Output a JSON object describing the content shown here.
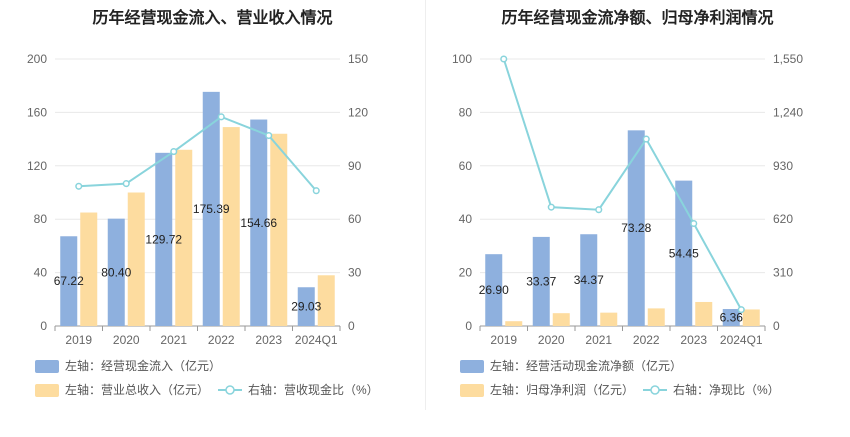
{
  "chart_data": [
    {
      "type": "bar",
      "title": "历年经营现金流入、营业收入情况",
      "categories": [
        "2019",
        "2020",
        "2021",
        "2022",
        "2023",
        "2024Q1"
      ],
      "left_axis": {
        "ylim": [
          0,
          200
        ],
        "ticks": [
          "0",
          "40",
          "80",
          "120",
          "160",
          "200"
        ]
      },
      "right_axis": {
        "ylim": [
          0,
          150
        ],
        "ticks": [
          "0",
          "30",
          "60",
          "90",
          "120",
          "150"
        ]
      },
      "series": [
        {
          "name": "左轴：经营现金流入（亿元）",
          "kind": "bar",
          "axis": "left",
          "color": "#8eb0de",
          "values": [
            67.22,
            80.4,
            129.72,
            175.39,
            154.66,
            29.03
          ],
          "labels": [
            "67.22",
            "80.40",
            "129.72",
            "175.39",
            "154.66",
            "29.03"
          ]
        },
        {
          "name": "左轴：营业总收入（亿元）",
          "kind": "bar",
          "axis": "left",
          "color": "#fddc9f",
          "values": [
            85,
            100,
            132,
            149,
            144,
            38
          ]
        },
        {
          "name": "右轴：营收现金比（%）",
          "kind": "line",
          "axis": "right",
          "color": "#89d4dc",
          "values": [
            78.5,
            80.0,
            98.0,
            117.5,
            107.0,
            76.0
          ]
        }
      ]
    },
    {
      "type": "bar",
      "title": "历年经营现金流净额、归母净利润情况",
      "categories": [
        "2019",
        "2020",
        "2021",
        "2022",
        "2023",
        "2024Q1"
      ],
      "left_axis": {
        "ylim": [
          0,
          100
        ],
        "ticks": [
          "0",
          "20",
          "40",
          "60",
          "80",
          "100"
        ]
      },
      "right_axis": {
        "ylim": [
          0,
          1550
        ],
        "ticks": [
          "0",
          "310",
          "620",
          "930",
          "1,240",
          "1,550"
        ]
      },
      "series": [
        {
          "name": "左轴：经营活动现金流净额（亿元）",
          "kind": "bar",
          "axis": "left",
          "color": "#8eb0de",
          "values": [
            26.9,
            33.37,
            34.37,
            73.28,
            54.45,
            6.36
          ],
          "labels": [
            "26.90",
            "33.37",
            "34.37",
            "73.28",
            "54.45",
            "6.36"
          ]
        },
        {
          "name": "左轴：归母净利润（亿元）",
          "kind": "bar",
          "axis": "left",
          "color": "#fddc9f",
          "values": [
            1.8,
            4.8,
            5.0,
            6.6,
            9.0,
            6.2
          ]
        },
        {
          "name": "右轴：净现比（%）",
          "kind": "line",
          "axis": "right",
          "color": "#89d4dc",
          "values": [
            1550,
            690,
            675,
            1085,
            595,
            95
          ]
        }
      ]
    }
  ]
}
